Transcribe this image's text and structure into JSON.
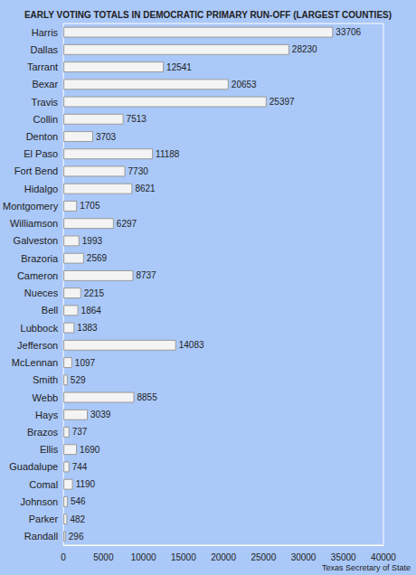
{
  "chart_data": {
    "type": "bar",
    "orientation": "horizontal",
    "title": "EARLY VOTING TOTALS IN DEMOCRATIC PRIMARY RUN-OFF (LARGEST COUNTIES)",
    "categories": [
      "Harris",
      "Dallas",
      "Tarrant",
      "Bexar",
      "Travis",
      "Collin",
      "Denton",
      "El Paso",
      "Fort Bend",
      "Hidalgo",
      "Montgomery",
      "Williamson",
      "Galveston",
      "Brazoria",
      "Cameron",
      "Nueces",
      "Bell",
      "Lubbock",
      "Jefferson",
      "McLennan",
      "Smith",
      "Webb",
      "Hays",
      "Brazos",
      "Ellis",
      "Guadalupe",
      "Comal",
      "Johnson",
      "Parker",
      "Randall"
    ],
    "values": [
      33706,
      28230,
      12541,
      20653,
      25397,
      7513,
      3703,
      11188,
      7730,
      8621,
      1705,
      6297,
      1993,
      2569,
      8737,
      2215,
      1864,
      1383,
      14083,
      1097,
      529,
      8855,
      3039,
      737,
      1690,
      744,
      1190,
      546,
      482,
      296
    ],
    "color": "#f4f4f4",
    "xlim": [
      0,
      40000
    ],
    "xticks": [
      0,
      5000,
      10000,
      15000,
      20000,
      25000,
      30000,
      35000,
      40000
    ],
    "grid": false,
    "data_labels": true,
    "annotations": [
      "Texas Secretary of State"
    ]
  }
}
